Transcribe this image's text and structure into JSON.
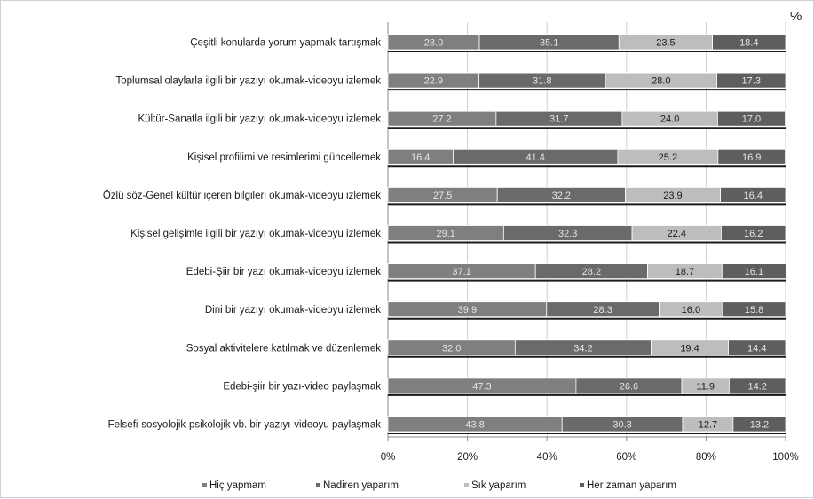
{
  "chart_data": {
    "type": "bar",
    "orientation": "horizontal",
    "stacked": true,
    "percent": true,
    "unit_label": "%",
    "categories": [
      "Çeşitli konularda yorum yapmak-tartışmak",
      "Toplumsal olaylarla ilgili bir yazıyı okumak-videoyu izlemek",
      "Kültür-Sanatla ilgili bir yazıyı okumak-videoyu izlemek",
      "Kişisel profilimi ve resimlerimi güncellemek",
      "Özlü söz-Genel kültür içeren bilgileri okumak-videoyu izlemek",
      "Kişisel gelişimle ilgili bir yazıyı okumak-videoyu izlemek",
      "Edebi-Şiir bir yazı okumak-videoyu izlemek",
      "Dini bir yazıyı okumak-videoyu izlemek",
      "Sosyal aktivitelere katılmak ve düzenlemek",
      "Edebi-şiir bir yazı-video paylaşmak",
      "Felsefi-sosyolojik-psikolojik vb. bir yazıyı-videoyu paylaşmak"
    ],
    "series": [
      {
        "name": "Hiç yapmam",
        "color": "#7f7f7f",
        "label_color": "#e6e6e6",
        "values": [
          23.0,
          22.9,
          27.2,
          16.4,
          27.5,
          29.1,
          37.1,
          39.9,
          32.0,
          47.3,
          43.8
        ]
      },
      {
        "name": "Nadiren yaparım",
        "color": "#6a6a6a",
        "label_color": "#e6e6e6",
        "values": [
          35.1,
          31.8,
          31.7,
          41.4,
          32.2,
          32.3,
          28.2,
          28.3,
          34.2,
          26.6,
          30.3
        ]
      },
      {
        "name": "Sık yaparım",
        "color": "#bdbdbd",
        "label_color": "#1a1a1a",
        "values": [
          23.5,
          28.0,
          24.0,
          25.2,
          23.9,
          22.4,
          18.7,
          16.0,
          19.4,
          11.9,
          12.7
        ]
      },
      {
        "name": "Her zaman yaparım",
        "color": "#5e5e5e",
        "label_color": "#e6e6e6",
        "values": [
          18.4,
          17.3,
          17.0,
          16.9,
          16.4,
          16.2,
          16.1,
          15.8,
          14.4,
          14.2,
          13.2
        ]
      }
    ],
    "x_ticks": [
      "0%",
      "20%",
      "40%",
      "60%",
      "80%",
      "100%"
    ],
    "xlim": [
      0,
      100
    ],
    "grid": true,
    "legend_position": "bottom"
  }
}
